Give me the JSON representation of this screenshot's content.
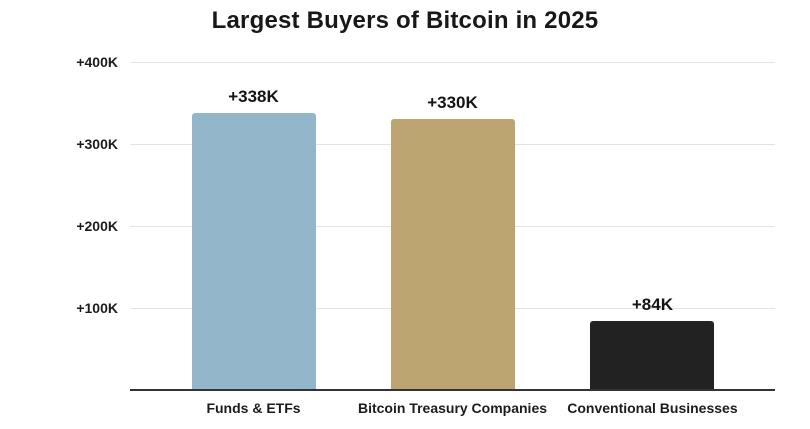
{
  "title": "Largest Buyers of Bitcoin in 2025",
  "chart_data": {
    "type": "bar",
    "title": "Largest Buyers of Bitcoin in 2025",
    "categories": [
      "Funds & ETFs",
      "Bitcoin Treasury Companies",
      "Conventional Businesses"
    ],
    "values": [
      338000,
      330000,
      84000
    ],
    "value_labels": [
      "+338K",
      "+330K",
      "+84K"
    ],
    "bar_colors": [
      "#94b6cb",
      "#bda572",
      "#222222"
    ],
    "y_ticks": [
      {
        "label": "+400K",
        "value": 400000
      },
      {
        "label": "+300K",
        "value": 300000
      },
      {
        "label": "+200K",
        "value": 200000
      },
      {
        "label": "+100K",
        "value": 100000
      }
    ],
    "ylim": [
      0,
      410000
    ],
    "xlabel": "",
    "ylabel": "",
    "grid": true,
    "legend": false
  },
  "colors": {
    "background": "#ffffff",
    "text": "#1c1c1c",
    "gridline": "#e3e3e3",
    "axis_line": "#333333"
  }
}
